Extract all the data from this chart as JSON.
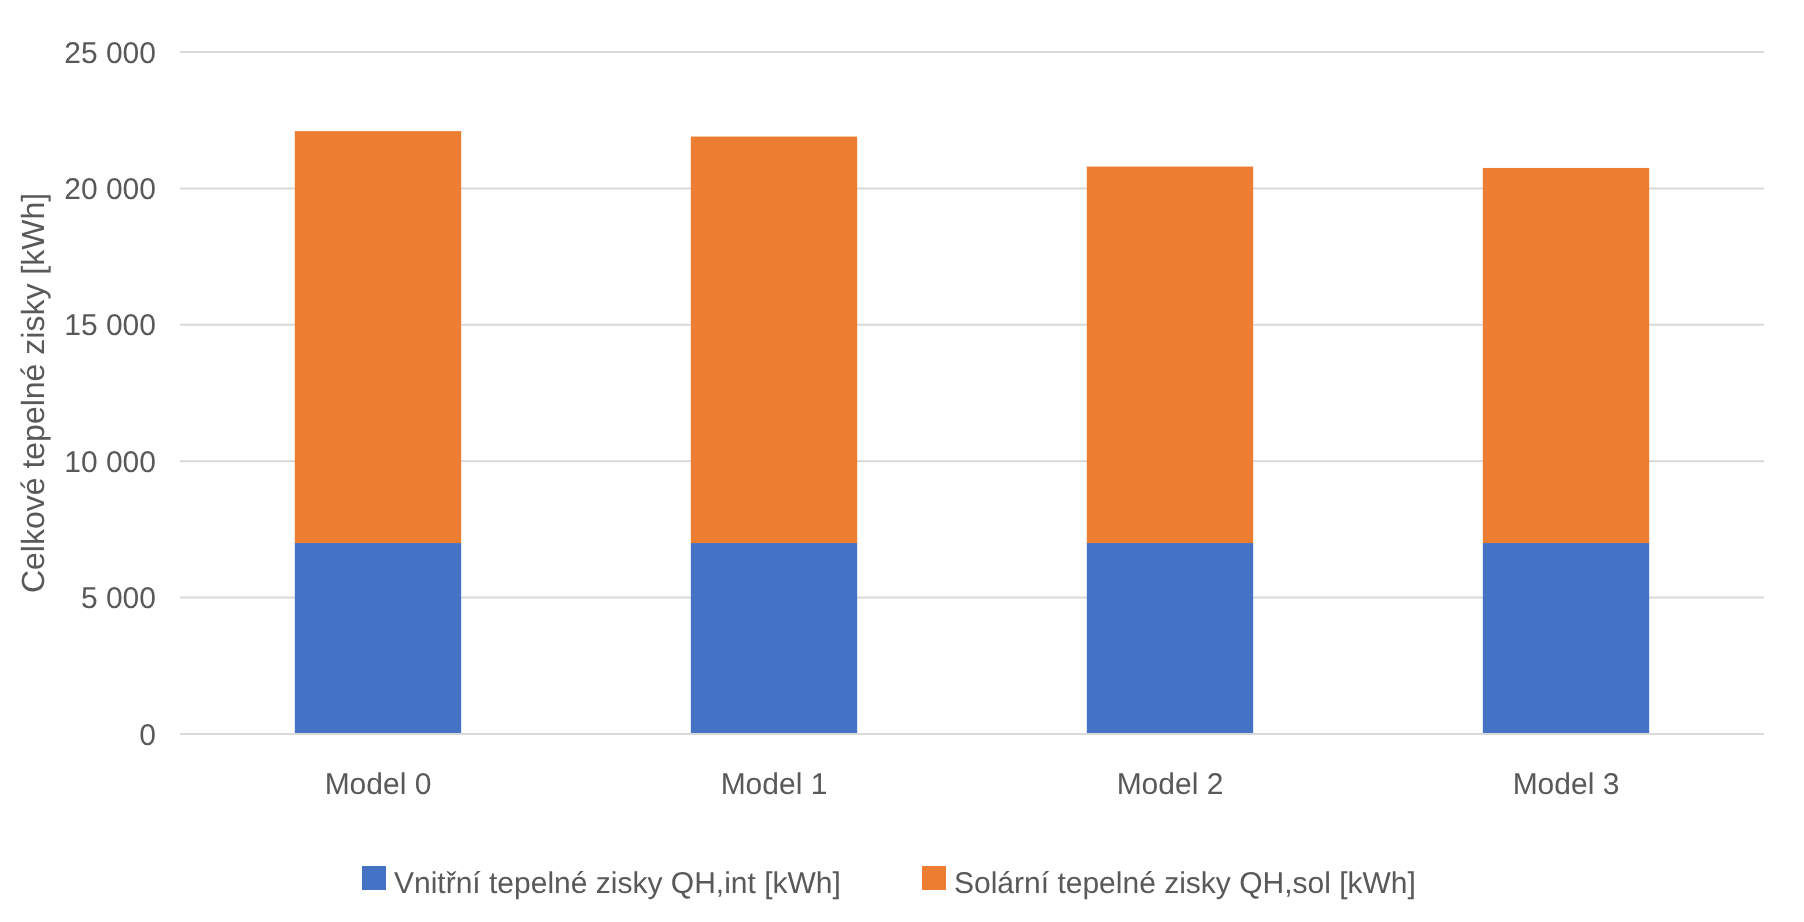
{
  "chart_data": {
    "type": "bar",
    "stacked": true,
    "ylabel": "Celkové tepelné zisky [kWh]",
    "categories": [
      "Model 0",
      "Model 1",
      "Model 2",
      "Model 3"
    ],
    "series": [
      {
        "name": "Vnitřní tepelné zisky QH,int [kWh]",
        "color": "#4472c4",
        "values": [
          7000,
          7000,
          7000,
          7000
        ]
      },
      {
        "name": "Solární tepelné zisky QH,sol [kWh]",
        "color": "#ed7d31",
        "values": [
          15100,
          14900,
          13800,
          13750
        ]
      }
    ],
    "ylim": [
      0,
      25000
    ],
    "yticks": [
      {
        "value": 0,
        "label": "0"
      },
      {
        "value": 5000,
        "label": "5 000"
      },
      {
        "value": 10000,
        "label": "10 000"
      },
      {
        "value": 15000,
        "label": "15 000"
      },
      {
        "value": 20000,
        "label": "20 000"
      },
      {
        "value": 25000,
        "label": "25 000"
      }
    ],
    "grid": "y",
    "legend": "bottom"
  }
}
